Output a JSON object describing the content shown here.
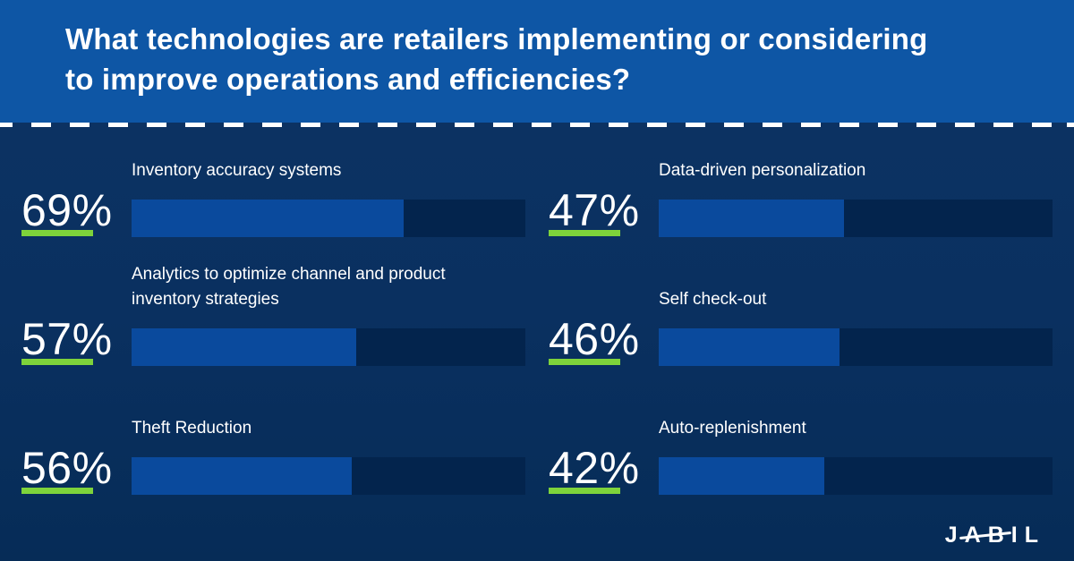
{
  "header": {
    "title": "What technologies are retailers implementing or considering\nto improve operations and efficiencies?"
  },
  "stats": {
    "items": [
      {
        "percent": "69%",
        "value": 69,
        "label": "Inventory accuracy systems"
      },
      {
        "percent": "57%",
        "value": 57,
        "label": "Analytics to optimize channel and product\ninventory strategies"
      },
      {
        "percent": "56%",
        "value": 56,
        "label": "Theft Reduction"
      },
      {
        "percent": "47%",
        "value": 47,
        "label": "Data-driven personalization"
      },
      {
        "percent": "46%",
        "value": 46,
        "label": "Self check-out"
      },
      {
        "percent": "42%",
        "value": 42,
        "label": "Auto-replenishment"
      }
    ]
  },
  "brand": {
    "name": "JABIL"
  },
  "colors": {
    "header_bg": "#0E56A5",
    "body_bg": "#0A3060",
    "bar_fill": "#0A4A9D",
    "bar_track": "#03244D",
    "accent_green": "#7ED33B",
    "text": "#FFFFFF"
  },
  "chart_data": {
    "type": "bar",
    "orientation": "horizontal",
    "title": "What technologies are retailers implementing or considering to improve operations and efficiencies?",
    "categories": [
      "Inventory accuracy systems",
      "Analytics to optimize channel and product inventory strategies",
      "Theft Reduction",
      "Data-driven personalization",
      "Self check-out",
      "Auto-replenishment"
    ],
    "values": [
      69,
      57,
      56,
      47,
      46,
      42
    ],
    "unit": "%",
    "xlim": [
      0,
      100
    ],
    "legend": "none",
    "grid": false,
    "layout": "two-column, percentages with green underline left of each bar, JABIL logo bottom right"
  }
}
